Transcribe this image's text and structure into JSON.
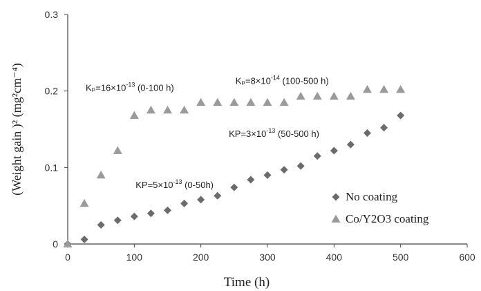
{
  "chart_data": {
    "type": "scatter",
    "xlabel": "Time (h)",
    "ylabel": "(Weight gain )² (mg²cm⁻⁴)",
    "xlim": [
      0,
      600
    ],
    "ylim": [
      0,
      0.3
    ],
    "xticks": [
      "0",
      "100",
      "200",
      "300",
      "400",
      "500",
      "600"
    ],
    "yticks": [
      "0",
      "0.1",
      "0.2",
      "0.3"
    ],
    "grid": false,
    "legend_position": "bottom-right",
    "series": [
      {
        "name": "No coating",
        "marker": "diamond",
        "color": "#6b6b6b",
        "points": [
          [
            0,
            0.0
          ],
          [
            25,
            0.006
          ],
          [
            50,
            0.025
          ],
          [
            75,
            0.031
          ],
          [
            100,
            0.036
          ],
          [
            125,
            0.04
          ],
          [
            150,
            0.044
          ],
          [
            175,
            0.053
          ],
          [
            200,
            0.058
          ],
          [
            225,
            0.063
          ],
          [
            250,
            0.074
          ],
          [
            275,
            0.084
          ],
          [
            300,
            0.09
          ],
          [
            325,
            0.097
          ],
          [
            350,
            0.102
          ],
          [
            375,
            0.115
          ],
          [
            400,
            0.122
          ],
          [
            425,
            0.13
          ],
          [
            450,
            0.145
          ],
          [
            475,
            0.152
          ],
          [
            500,
            0.168
          ]
        ]
      },
      {
        "name": "Co/Y2O3 coating",
        "marker": "triangle",
        "color": "#9a9a9a",
        "points": [
          [
            0,
            0.0
          ],
          [
            25,
            0.053
          ],
          [
            50,
            0.09
          ],
          [
            75,
            0.122
          ],
          [
            100,
            0.168
          ],
          [
            125,
            0.175
          ],
          [
            150,
            0.175
          ],
          [
            175,
            0.175
          ],
          [
            200,
            0.185
          ],
          [
            225,
            0.185
          ],
          [
            250,
            0.185
          ],
          [
            275,
            0.185
          ],
          [
            300,
            0.185
          ],
          [
            325,
            0.185
          ],
          [
            350,
            0.193
          ],
          [
            375,
            0.193
          ],
          [
            400,
            0.193
          ],
          [
            425,
            0.193
          ],
          [
            450,
            0.202
          ],
          [
            475,
            0.202
          ],
          [
            500,
            0.202
          ]
        ]
      }
    ],
    "annotations": [
      {
        "id": "k1",
        "x": 0,
        "y": 0.2,
        "main": "Kₚ=16×10",
        "sup": "-13",
        "rest": "   (0-100 h)"
      },
      {
        "id": "k2",
        "x": 225,
        "y": 0.209,
        "main": "Kₚ=8×10",
        "sup": "-14",
        "rest": "   (100-500 h)"
      },
      {
        "id": "k3",
        "x": 215,
        "y": 0.14,
        "main": "KP=3×10",
        "sup": "-13",
        "rest": "    (50-500 h)"
      },
      {
        "id": "k4",
        "x": 75,
        "y": 0.073,
        "main": "KP=5×10",
        "sup": "-13",
        "rest": "    (0-50h)"
      }
    ]
  }
}
